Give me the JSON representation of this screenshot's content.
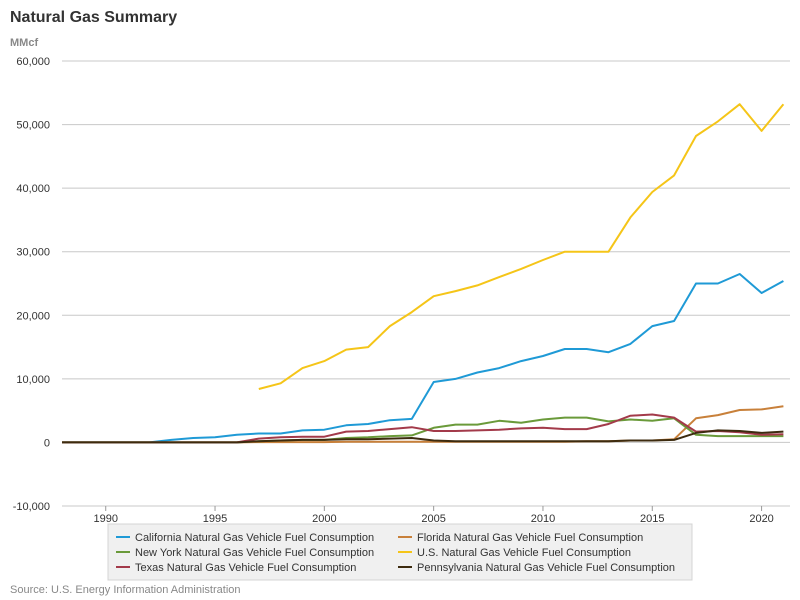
{
  "title": "Natural Gas Summary",
  "unit_label": "MMcf",
  "source": "Source: U.S. Energy Information Administration",
  "chart_data": {
    "type": "line",
    "title": "Natural Gas Summary",
    "ylabel": "MMcf",
    "ylim": [
      -10000,
      60000
    ],
    "xlim": [
      1988,
      2021.3
    ],
    "yticks": [
      -10000,
      0,
      10000,
      20000,
      30000,
      40000,
      50000,
      60000
    ],
    "ytick_labels": [
      "-10,000",
      "0",
      "10,000",
      "20,000",
      "30,000",
      "40,000",
      "50,000",
      "60,000"
    ],
    "xticks": [
      1990,
      1995,
      2000,
      2005,
      2010,
      2015,
      2020
    ],
    "xtick_labels": [
      "1990",
      "1995",
      "2000",
      "2005",
      "2010",
      "2015",
      "2020"
    ],
    "grid": "horizontal",
    "legend_position": "bottom",
    "series": [
      {
        "name": "California Natural Gas Vehicle Fuel Consumption",
        "color": "#1f9ad6",
        "x": [
          1988,
          1989,
          1990,
          1991,
          1992,
          1993,
          1994,
          1995,
          1996,
          1997,
          1998,
          1999,
          2000,
          2001,
          2002,
          2003,
          2004,
          2005,
          2006,
          2007,
          2008,
          2009,
          2010,
          2011,
          2012,
          2013,
          2014,
          2015,
          2016,
          2017,
          2018,
          2019,
          2020,
          2021
        ],
        "y": [
          0,
          0,
          0,
          0,
          0,
          400,
          700,
          800,
          1200,
          1400,
          1400,
          1900,
          2000,
          2700,
          2900,
          3500,
          3700,
          9500,
          10000,
          11000,
          11700,
          12800,
          13600,
          14700,
          14700,
          14200,
          15500,
          18300,
          19100,
          25000,
          25000,
          26500,
          23500,
          25400
        ]
      },
      {
        "name": "Florida Natural Gas Vehicle Fuel Consumption",
        "color": "#c8803a",
        "x": [
          1988,
          1989,
          1990,
          1991,
          1992,
          1993,
          1994,
          1995,
          1996,
          1997,
          1998,
          1999,
          2000,
          2001,
          2002,
          2003,
          2004,
          2005,
          2006,
          2007,
          2008,
          2009,
          2010,
          2011,
          2012,
          2013,
          2014,
          2015,
          2016,
          2017,
          2018,
          2019,
          2020,
          2021
        ],
        "y": [
          0,
          0,
          0,
          0,
          0,
          0,
          0,
          0,
          0,
          50,
          50,
          50,
          50,
          100,
          100,
          100,
          100,
          100,
          100,
          100,
          100,
          100,
          100,
          100,
          200,
          200,
          300,
          300,
          500,
          3800,
          4300,
          5100,
          5200,
          5700
        ]
      },
      {
        "name": "New York Natural Gas Vehicle Fuel Consumption",
        "color": "#6a9a3a",
        "x": [
          1988,
          1989,
          1990,
          1991,
          1992,
          1993,
          1994,
          1995,
          1996,
          1997,
          1998,
          1999,
          2000,
          2001,
          2002,
          2003,
          2004,
          2005,
          2006,
          2007,
          2008,
          2009,
          2010,
          2011,
          2012,
          2013,
          2014,
          2015,
          2016,
          2017,
          2018,
          2019,
          2020,
          2021
        ],
        "y": [
          0,
          0,
          0,
          0,
          0,
          0,
          0,
          0,
          0,
          200,
          300,
          400,
          400,
          700,
          800,
          1000,
          1100,
          2300,
          2800,
          2800,
          3400,
          3100,
          3600,
          3900,
          3900,
          3300,
          3600,
          3400,
          3800,
          1200,
          1000,
          1000,
          1000,
          1000
        ]
      },
      {
        "name": "U.S. Natural Gas Vehicle Fuel Consumption",
        "color": "#f5c518",
        "x": [
          1997,
          1998,
          1999,
          2000,
          2001,
          2002,
          2003,
          2004,
          2005,
          2006,
          2007,
          2008,
          2009,
          2010,
          2011,
          2012,
          2013,
          2014,
          2015,
          2016,
          2017,
          2018,
          2019,
          2020,
          2021
        ],
        "y": [
          8400,
          9300,
          11700,
          12800,
          14600,
          15000,
          18300,
          20500,
          23000,
          23800,
          24700,
          26000,
          27300,
          28700,
          30000,
          30000,
          30000,
          35400,
          39400,
          42000,
          48200,
          50500,
          53200,
          49000,
          53200
        ]
      },
      {
        "name": "Texas Natural Gas Vehicle Fuel Consumption",
        "color": "#a33a4a",
        "x": [
          1988,
          1989,
          1990,
          1991,
          1992,
          1993,
          1994,
          1995,
          1996,
          1997,
          1998,
          1999,
          2000,
          2001,
          2002,
          2003,
          2004,
          2005,
          2006,
          2007,
          2008,
          2009,
          2010,
          2011,
          2012,
          2013,
          2014,
          2015,
          2016,
          2017,
          2018,
          2019,
          2020,
          2021
        ],
        "y": [
          0,
          0,
          0,
          0,
          0,
          0,
          0,
          0,
          0,
          600,
          800,
          900,
          900,
          1700,
          1800,
          2100,
          2400,
          1800,
          1800,
          1900,
          2000,
          2200,
          2300,
          2100,
          2100,
          2900,
          4200,
          4400,
          3900,
          1700,
          1800,
          1600,
          1200,
          1300
        ]
      },
      {
        "name": "Pennsylvania Natural Gas Vehicle Fuel Consumption",
        "color": "#3d2b0f",
        "x": [
          1988,
          1989,
          1990,
          1991,
          1992,
          1993,
          1994,
          1995,
          1996,
          1997,
          1998,
          1999,
          2000,
          2001,
          2002,
          2003,
          2004,
          2005,
          2006,
          2007,
          2008,
          2009,
          2010,
          2011,
          2012,
          2013,
          2014,
          2015,
          2016,
          2017,
          2018,
          2019,
          2020,
          2021
        ],
        "y": [
          0,
          0,
          0,
          0,
          0,
          0,
          0,
          0,
          0,
          200,
          300,
          400,
          400,
          500,
          500,
          600,
          700,
          300,
          200,
          200,
          200,
          200,
          200,
          200,
          200,
          200,
          300,
          300,
          400,
          1500,
          1900,
          1800,
          1500,
          1700
        ]
      }
    ]
  }
}
